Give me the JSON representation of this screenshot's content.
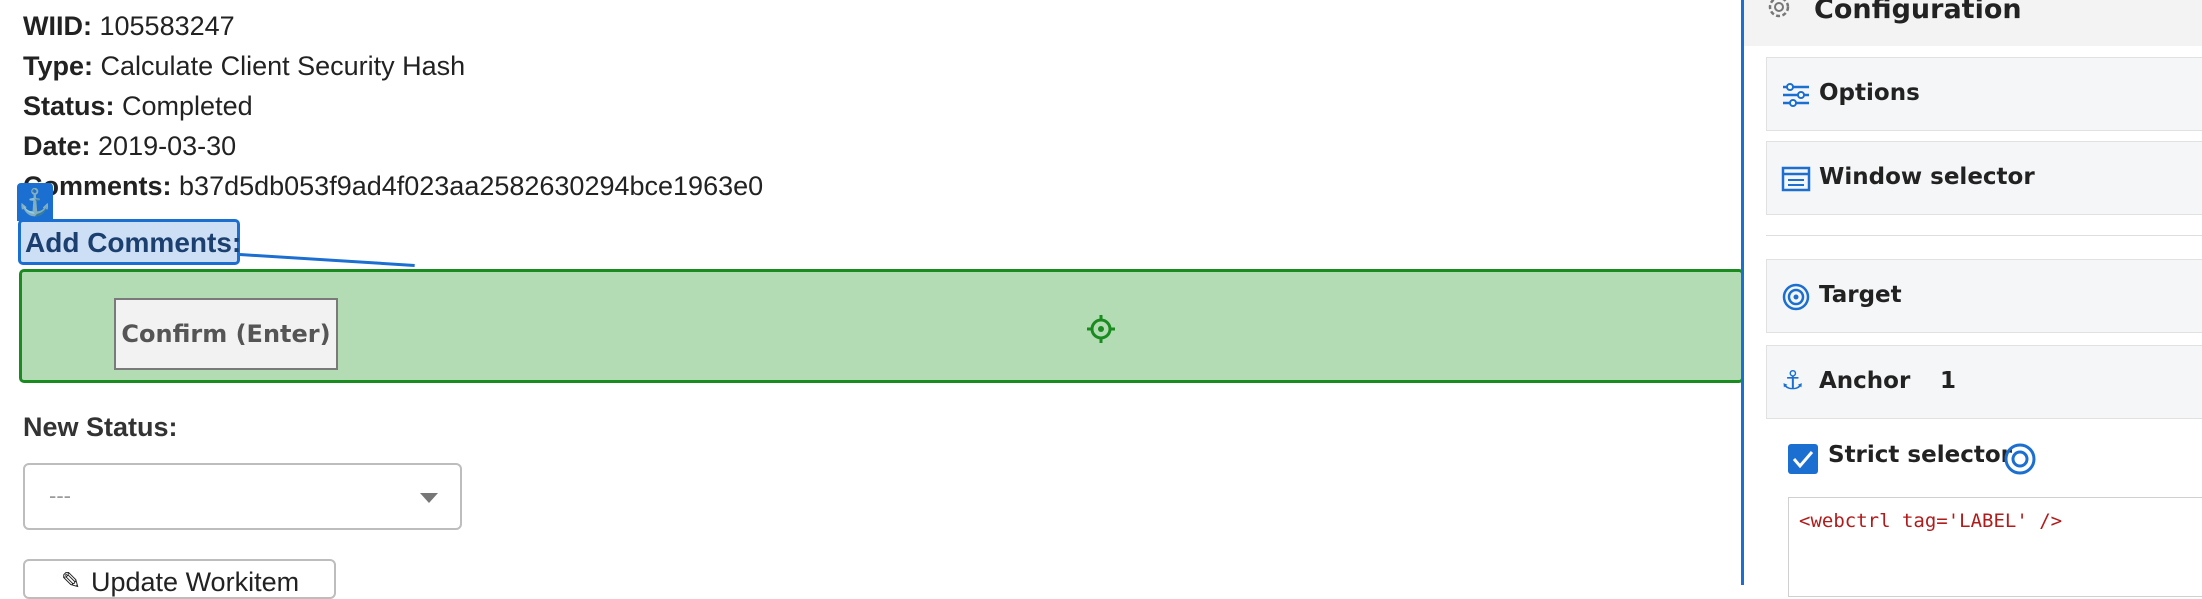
{
  "workitem": {
    "fields": [
      {
        "label": "WIID:",
        "value": "105583247"
      },
      {
        "label": "Type:",
        "value": "Calculate Client Security Hash"
      },
      {
        "label": "Status:",
        "value": "Completed"
      },
      {
        "label": "Date:",
        "value": "2019-03-30"
      },
      {
        "label": "Comments:",
        "value": "b37d5db053f9ad4f023aa2582630294bce1963e0"
      }
    ],
    "add_comments_label": "Add Comments:",
    "confirm_button": "Confirm (Enter)",
    "new_status_label": "New Status:",
    "status_select_value": "---",
    "update_button": "Update Workitem"
  },
  "config_panel": {
    "title": "Configuration",
    "sections": {
      "options": "Options",
      "window_selector": "Window selector",
      "target": "Target",
      "anchor": "Anchor",
      "anchor_count": "1"
    },
    "strict_selector": {
      "label": "Strict selector",
      "checked": true,
      "selector_code": "<webctrl tag='LABEL' />"
    }
  },
  "colors": {
    "accent_blue": "#1a6fd1",
    "target_green_fill": "#b3dcb4",
    "target_green_border": "#1a8b1f",
    "anchor_fill": "rgba(26,111,209,0.22)"
  },
  "icons": [
    "anchor-icon",
    "crosshair-icon",
    "gear-icon",
    "options-icon",
    "window-selector-icon",
    "target-icon",
    "checkbox-icon",
    "pencil-icon",
    "chevron-down-icon"
  ]
}
